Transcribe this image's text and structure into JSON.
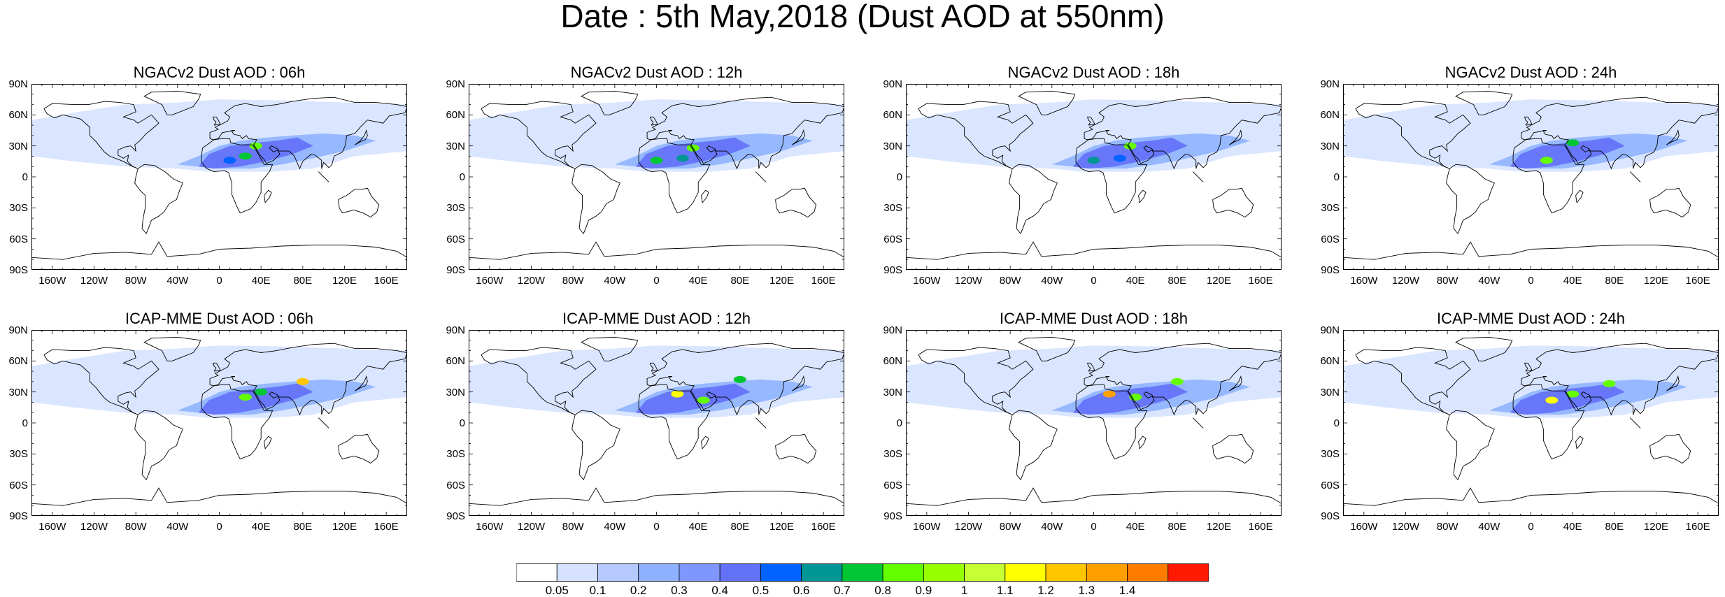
{
  "title": "Date : 5th May,2018 (Dust AOD at 550nm)",
  "panels": [
    {
      "title": "NGACv2 Dust AOD : 06h",
      "model": "NGACv2",
      "lead": "06h",
      "hotspots": [
        {
          "lon": 10,
          "lat": 16,
          "aod": 0.5
        },
        {
          "lon": 35,
          "lat": 30,
          "aod": 0.85
        },
        {
          "lon": 25,
          "lat": 20,
          "aod": 0.7
        }
      ]
    },
    {
      "title": "NGACv2 Dust AOD : 12h",
      "model": "NGACv2",
      "lead": "12h",
      "hotspots": [
        {
          "lon": 0,
          "lat": 16,
          "aod": 0.75
        },
        {
          "lon": 35,
          "lat": 28,
          "aod": 0.8
        },
        {
          "lon": 25,
          "lat": 18,
          "aod": 0.6
        }
      ]
    },
    {
      "title": "NGACv2 Dust AOD : 18h",
      "model": "NGACv2",
      "lead": "18h",
      "hotspots": [
        {
          "lon": 0,
          "lat": 16,
          "aod": 0.6
        },
        {
          "lon": 35,
          "lat": 30,
          "aod": 0.8
        },
        {
          "lon": 25,
          "lat": 18,
          "aod": 0.55
        }
      ]
    },
    {
      "title": "NGACv2 Dust AOD : 24h",
      "model": "NGACv2",
      "lead": "24h",
      "hotspots": [
        {
          "lon": 15,
          "lat": 16,
          "aod": 0.85
        },
        {
          "lon": 40,
          "lat": 33,
          "aod": 0.7
        }
      ]
    },
    {
      "title": "ICAP-MME Dust AOD : 06h",
      "model": "ICAP-MME",
      "lead": "06h",
      "hotspots": [
        {
          "lon": 25,
          "lat": 25,
          "aod": 0.85
        },
        {
          "lon": 40,
          "lat": 30,
          "aod": 0.7
        },
        {
          "lon": 80,
          "lat": 40,
          "aod": 1.2
        }
      ]
    },
    {
      "title": "ICAP-MME Dust AOD : 12h",
      "model": "ICAP-MME",
      "lead": "12h",
      "hotspots": [
        {
          "lon": 20,
          "lat": 28,
          "aod": 1.1
        },
        {
          "lon": 45,
          "lat": 22,
          "aod": 0.8
        },
        {
          "lon": 80,
          "lat": 42,
          "aod": 0.75
        }
      ]
    },
    {
      "title": "ICAP-MME Dust AOD : 18h",
      "model": "ICAP-MME",
      "lead": "18h",
      "hotspots": [
        {
          "lon": 15,
          "lat": 28,
          "aod": 1.3
        },
        {
          "lon": 40,
          "lat": 25,
          "aod": 0.85
        },
        {
          "lon": 80,
          "lat": 40,
          "aod": 0.85
        }
      ]
    },
    {
      "title": "ICAP-MME Dust AOD : 24h",
      "model": "ICAP-MME",
      "lead": "24h",
      "hotspots": [
        {
          "lon": 20,
          "lat": 22,
          "aod": 1.1
        },
        {
          "lon": 40,
          "lat": 28,
          "aod": 0.85
        },
        {
          "lon": 75,
          "lat": 38,
          "aod": 0.8
        }
      ]
    }
  ],
  "axes": {
    "y_labels": [
      "90N",
      "60N",
      "30N",
      "0",
      "30S",
      "60S",
      "90S"
    ],
    "x_labels": [
      "160W",
      "120W",
      "80W",
      "40W",
      "0",
      "40E",
      "80E",
      "120E",
      "160E"
    ]
  },
  "colorbar": {
    "colors": [
      "#ffffff",
      "#d6e2ff",
      "#b5c9ff",
      "#8eb2ff",
      "#7f96ff",
      "#6370f8",
      "#0063ff",
      "#009696",
      "#00c633",
      "#63ff00",
      "#96ff00",
      "#c6ff33",
      "#ffff00",
      "#ffc600",
      "#ffa000",
      "#ff7c00",
      "#ff1900"
    ],
    "labels": [
      "0.05",
      "0.1",
      "0.2",
      "0.3",
      "0.4",
      "0.5",
      "0.6",
      "0.7",
      "0.8",
      "0.9",
      "1",
      "1.1",
      "1.2",
      "1.3",
      "1.4"
    ]
  }
}
